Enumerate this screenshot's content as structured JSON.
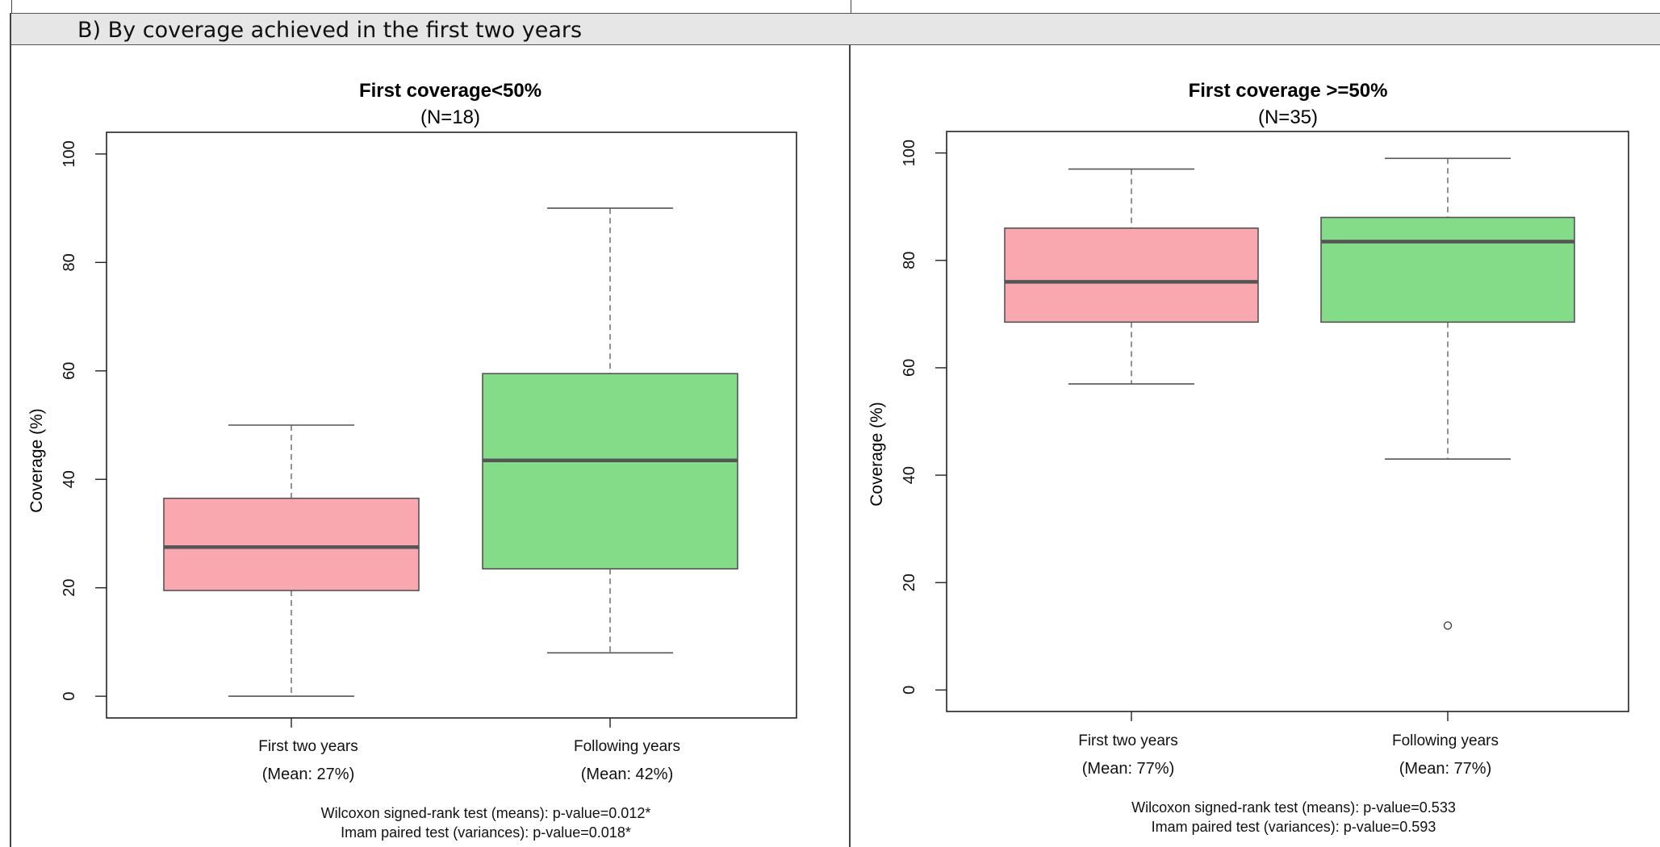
{
  "header": {
    "title": "B)   By coverage achieved in the first two years"
  },
  "colors": {
    "first": "#f8a8ae",
    "following": "#84db88",
    "median": "#555555",
    "whisker": "#777777"
  },
  "chart_data": [
    {
      "type": "box",
      "title": "First coverage<50%",
      "subtitle": "(N=18)",
      "ylabel": "Coverage (%)",
      "ylim": [
        -4,
        104
      ],
      "yticks": [
        0,
        20,
        40,
        60,
        80,
        100
      ],
      "categories": [
        "First two years",
        "Following years"
      ],
      "means": [
        "(Mean: 27%)",
        "(Mean: 42%)"
      ],
      "boxes": [
        {
          "name": "First two years",
          "min": 0,
          "q1": 19.5,
          "median": 27.5,
          "q3": 36.5,
          "max": 50,
          "outliers": []
        },
        {
          "name": "Following years",
          "min": 8,
          "q1": 23.5,
          "median": 43.5,
          "q3": 59.5,
          "max": 90,
          "outliers": []
        }
      ],
      "tests": [
        "Wilcoxon signed-rank test (means): p-value=0.012*",
        "Imam paired test (variances): p-value=0.018*"
      ]
    },
    {
      "type": "box",
      "title": "First coverage >=50%",
      "subtitle": "(N=35)",
      "ylabel": "Coverage (%)",
      "ylim": [
        -4,
        104
      ],
      "yticks": [
        0,
        20,
        40,
        60,
        80,
        100
      ],
      "categories": [
        "First two years",
        "Following years"
      ],
      "means": [
        "(Mean: 77%)",
        "(Mean: 77%)"
      ],
      "boxes": [
        {
          "name": "First two years",
          "min": 57,
          "q1": 68.5,
          "median": 76,
          "q3": 86,
          "max": 97,
          "outliers": []
        },
        {
          "name": "Following years",
          "min": 43,
          "q1": 68.5,
          "median": 83.5,
          "q3": 88,
          "max": 99,
          "outliers": [
            12
          ]
        }
      ],
      "tests": [
        "Wilcoxon signed-rank test (means): p-value=0.533",
        "Imam paired test (variances): p-value=0.593"
      ]
    }
  ]
}
